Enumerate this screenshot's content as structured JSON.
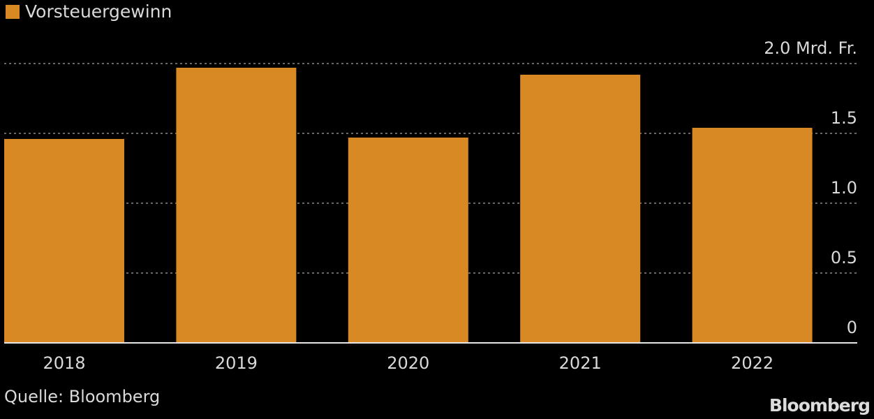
{
  "chart_data": {
    "type": "bar",
    "categories": [
      "2018",
      "2019",
      "2020",
      "2021",
      "2022"
    ],
    "series": [
      {
        "name": "Vorsteuergewinn",
        "values": [
          1.46,
          1.97,
          1.47,
          1.92,
          1.54
        ],
        "color": "#d98923"
      }
    ],
    "ylim": [
      0,
      2.0
    ],
    "yticks": [
      0,
      0.5,
      1.0,
      1.5,
      2.0
    ],
    "ytick_labels": [
      "0",
      "0.5",
      "1.0",
      "1.5",
      "2.0 Mrd. Fr."
    ],
    "grid": true,
    "legend": "top-left",
    "title": "",
    "xlabel": "",
    "ylabel": ""
  },
  "source": "Quelle: Bloomberg",
  "brand": "Bloomberg",
  "colors": {
    "background": "#000000",
    "text": "#d9d9d9",
    "grid": "#8a8a8a",
    "axis": "#e6e6e6"
  }
}
